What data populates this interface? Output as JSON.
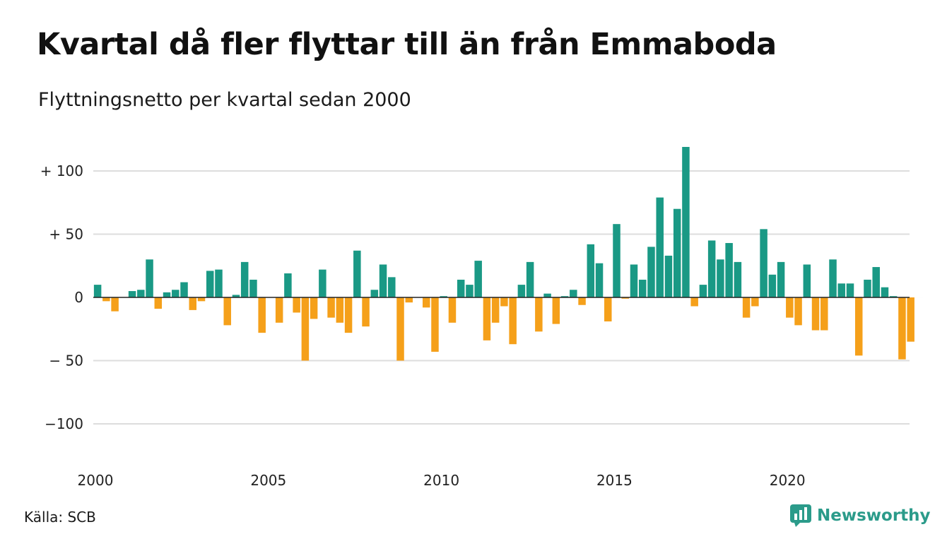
{
  "header": {
    "title": "Kvartal då fler flyttar till än från Emmaboda",
    "subtitle": "Flyttningsnetto per kvartal sedan 2000"
  },
  "footer": {
    "source": "Källa: SCB",
    "brand": "Newsworthy",
    "brand_icon": "newsworthy-logo-icon"
  },
  "colors": {
    "positive": "#1a9985",
    "negative": "#f5a01a",
    "grid": "#dddddd",
    "zero_line": "#222222",
    "brand": "#2b9b8a"
  },
  "chart_data": {
    "type": "bar",
    "title": "Kvartal då fler flyttar till än från Emmaboda",
    "subtitle": "Flyttningsnetto per kvartal sedan 2000",
    "xlabel": "",
    "ylabel": "",
    "ylim": [
      -125,
      125
    ],
    "xlim": [
      2000,
      2023.75
    ],
    "y_ticks": [
      {
        "value": 100,
        "label": "+ 100"
      },
      {
        "value": 50,
        "label": "+  50"
      },
      {
        "value": 0,
        "label": "0"
      },
      {
        "value": -50,
        "label": "− 50"
      },
      {
        "value": -100,
        "label": "−100"
      }
    ],
    "x_ticks": [
      {
        "value": 2000,
        "label": "2000"
      },
      {
        "value": 2005,
        "label": "2005"
      },
      {
        "value": 2010,
        "label": "2010"
      },
      {
        "value": 2015,
        "label": "2015"
      },
      {
        "value": 2020,
        "label": "2020"
      }
    ],
    "grid": true,
    "legend": "none",
    "series": [
      {
        "categories": [
          "2000 K1",
          "2000 K2",
          "2000 K3",
          "2000 K4",
          "2001 K1",
          "2001 K2",
          "2001 K3",
          "2001 K4",
          "2002 K1",
          "2002 K2",
          "2002 K3",
          "2002 K4",
          "2003 K1",
          "2003 K2",
          "2003 K3",
          "2003 K4",
          "2004 K1",
          "2004 K2",
          "2004 K3",
          "2004 K4",
          "2005 K1",
          "2005 K2",
          "2005 K3",
          "2005 K4",
          "2006 K1",
          "2006 K2",
          "2006 K3",
          "2006 K4",
          "2007 K1",
          "2007 K2",
          "2007 K3",
          "2007 K4",
          "2008 K1",
          "2008 K2",
          "2008 K3",
          "2008 K4",
          "2009 K1",
          "2009 K2",
          "2009 K3",
          "2009 K4",
          "2010 K1",
          "2010 K2",
          "2010 K3",
          "2010 K4",
          "2011 K1",
          "2011 K2",
          "2011 K3",
          "2011 K4",
          "2012 K1",
          "2012 K2",
          "2012 K3",
          "2012 K4",
          "2013 K1",
          "2013 K2",
          "2013 K3",
          "2013 K4",
          "2014 K1",
          "2014 K2",
          "2014 K3",
          "2014 K4",
          "2015 K1",
          "2015 K2",
          "2015 K3",
          "2015 K4",
          "2016 K1",
          "2016 K2",
          "2016 K3",
          "2016 K4",
          "2017 K1",
          "2017 K2",
          "2017 K3",
          "2017 K4",
          "2018 K1",
          "2018 K2",
          "2018 K3",
          "2018 K4",
          "2019 K1",
          "2019 K2",
          "2019 K3",
          "2019 K4",
          "2020 K1",
          "2020 K2",
          "2020 K3",
          "2020 K4",
          "2021 K1",
          "2021 K2",
          "2021 K3",
          "2021 K4",
          "2022 K1",
          "2022 K2",
          "2022 K3",
          "2022 K4",
          "2023 K1",
          "2023 K2",
          "2023 K3",
          "2023 K4"
        ],
        "values": [
          10,
          -3,
          -11,
          0,
          5,
          6,
          30,
          -9,
          4,
          6,
          12,
          -10,
          -3,
          21,
          22,
          -22,
          2,
          28,
          14,
          -28,
          0,
          -20,
          19,
          -12,
          -50,
          -17,
          22,
          -16,
          -20,
          -28,
          37,
          -23,
          6,
          26,
          16,
          -50,
          -4,
          0,
          -8,
          -43,
          1,
          -20,
          14,
          10,
          29,
          -34,
          -20,
          -7,
          -37,
          10,
          28,
          -27,
          3,
          -21,
          1,
          6,
          -6,
          42,
          27,
          -19,
          58,
          -1,
          26,
          14,
          40,
          79,
          33,
          70,
          119,
          -7,
          10,
          45,
          30,
          43,
          28,
          -16,
          -7,
          54,
          18,
          28,
          -16,
          -22,
          26,
          -26,
          -26,
          30,
          11,
          11,
          -46,
          14,
          24,
          8,
          1,
          -49,
          -35,
          0
        ]
      }
    ]
  }
}
